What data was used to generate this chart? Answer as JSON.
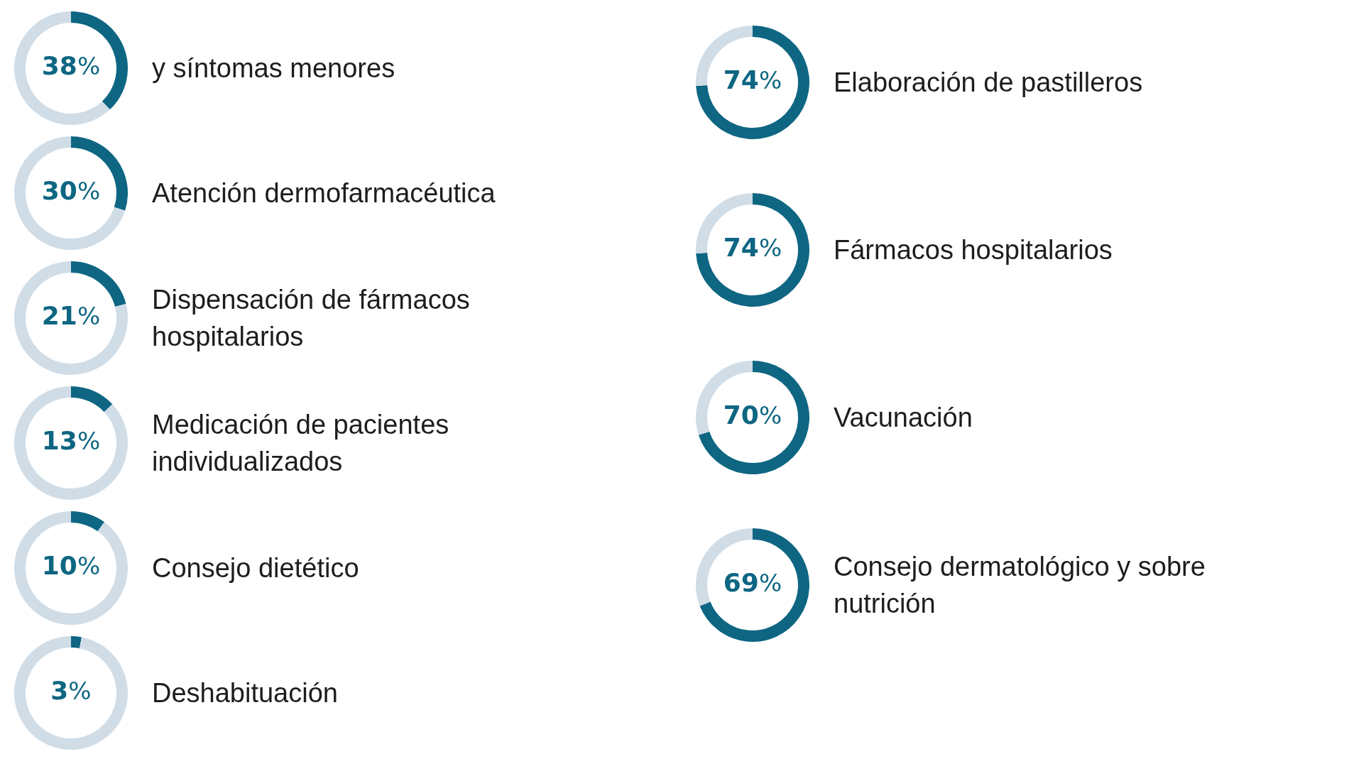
{
  "chart_data": [
    {
      "type": "donut",
      "title": "y síntomas menores",
      "categories": [
        null,
        null
      ],
      "values": [
        38,
        62
      ],
      "colors": [
        "#0e6682",
        "#d0dde7"
      ],
      "value_labels": [
        "38%",
        null
      ]
    },
    {
      "type": "donut",
      "title": "Atención dermofarmacéutica",
      "categories": [
        null,
        null
      ],
      "values": [
        30,
        70
      ],
      "colors": [
        "#0e6682",
        "#d0dde7"
      ],
      "value_labels": [
        "30%",
        null
      ]
    },
    {
      "type": "donut",
      "title": "Dispensación de fármacos hospitalarios",
      "categories": [
        null,
        null
      ],
      "values": [
        21,
        79
      ],
      "colors": [
        "#0e6682",
        "#d0dde7"
      ],
      "value_labels": [
        "21%",
        null
      ]
    },
    {
      "type": "donut",
      "title": "Medicación de pacientes individualizados",
      "categories": [
        null,
        null
      ],
      "values": [
        13,
        87
      ],
      "colors": [
        "#0e6682",
        "#d0dde7"
      ],
      "value_labels": [
        "13%",
        null
      ]
    },
    {
      "type": "donut",
      "title": "Consejo dietético",
      "categories": [
        null,
        null
      ],
      "values": [
        10,
        90
      ],
      "colors": [
        "#0e6682",
        "#d0dde7"
      ],
      "value_labels": [
        "10%",
        null
      ]
    },
    {
      "type": "donut",
      "title": "Deshabituación",
      "categories": [
        null,
        null
      ],
      "values": [
        3,
        97
      ],
      "colors": [
        "#0e6682",
        "#d0dde7"
      ],
      "value_labels": [
        "3%",
        null
      ]
    },
    {
      "type": "donut",
      "title": "Elaboración de pastilleros",
      "categories": [
        null,
        null
      ],
      "values": [
        74,
        26
      ],
      "colors": [
        "#0e6682",
        "#d0dde7"
      ],
      "value_labels": [
        "74%",
        null
      ]
    },
    {
      "type": "donut",
      "title": "Fármacos hospitalarios",
      "categories": [
        null,
        null
      ],
      "values": [
        74,
        26
      ],
      "colors": [
        "#0e6682",
        "#d0dde7"
      ],
      "value_labels": [
        "74%",
        null
      ]
    },
    {
      "type": "donut",
      "title": "Vacunación",
      "categories": [
        null,
        null
      ],
      "values": [
        70,
        30
      ],
      "colors": [
        "#0e6682",
        "#d0dde7"
      ],
      "value_labels": [
        "70%",
        null
      ]
    },
    {
      "type": "donut",
      "title": "Consejo dermatológico y sobre nutrición",
      "categories": [
        null,
        null
      ],
      "values": [
        69,
        31
      ],
      "colors": [
        "#0e6682",
        "#d0dde7"
      ],
      "value_labels": [
        "69%",
        null
      ]
    }
  ]
}
